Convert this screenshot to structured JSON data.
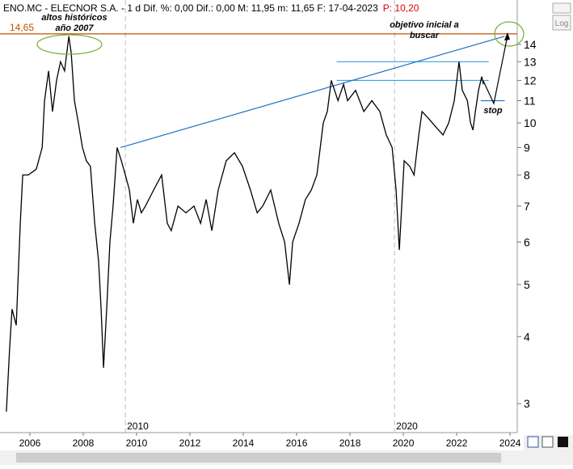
{
  "header": {
    "text": "ENO.MC - ELECNOR S.A. -  1 d  Dif. %: 0,00  Dif.: 0,00  M: 11,95  m: 11,65  F: 17-04-2023",
    "price": "P: 10,20",
    "log_button": "Log"
  },
  "chart_data": {
    "type": "line",
    "log_scale": true,
    "x": [
      2005.12,
      2005.24,
      2005.33,
      2005.49,
      2005.64,
      2005.73,
      2005.94,
      2006.24,
      2006.46,
      2006.55,
      2006.7,
      2006.85,
      2007.0,
      2007.15,
      2007.3,
      2007.46,
      2007.55,
      2007.67,
      2007.82,
      2007.97,
      2008.12,
      2008.27,
      2008.43,
      2008.58,
      2008.67,
      2008.76,
      2008.88,
      2009.0,
      2009.12,
      2009.27,
      2009.43,
      2009.58,
      2009.73,
      2009.88,
      2010.03,
      2010.18,
      2010.33,
      2010.64,
      2010.94,
      2011.15,
      2011.3,
      2011.55,
      2011.85,
      2012.15,
      2012.4,
      2012.61,
      2012.82,
      2013.06,
      2013.36,
      2013.67,
      2013.97,
      2014.27,
      2014.52,
      2014.73,
      2015.03,
      2015.33,
      2015.55,
      2015.73,
      2015.85,
      2016.09,
      2016.33,
      2016.55,
      2016.76,
      2017.0,
      2017.15,
      2017.3,
      2017.55,
      2017.76,
      2017.91,
      2018.21,
      2018.52,
      2018.82,
      2019.12,
      2019.36,
      2019.58,
      2019.73,
      2019.85,
      2020.03,
      2020.24,
      2020.4,
      2020.58,
      2020.7,
      2020.94,
      2021.24,
      2021.49,
      2021.7,
      2021.91,
      2022.09,
      2022.21,
      2022.4,
      2022.52,
      2022.61,
      2022.7,
      2022.82,
      2022.94,
      2023.0
    ],
    "series": [
      {
        "name": "ENO.MC",
        "color": "#000000",
        "values": [
          2.9,
          3.8,
          4.5,
          4.2,
          6.5,
          8,
          8,
          8.2,
          9,
          11,
          12.5,
          10.5,
          12,
          13,
          12.5,
          14.5,
          13.5,
          11,
          10,
          9,
          8.5,
          8.3,
          6.5,
          5.5,
          4.5,
          3.5,
          4.5,
          6,
          7,
          9,
          8.5,
          8,
          7.5,
          6.5,
          7.2,
          6.8,
          7,
          7.5,
          8,
          6.5,
          6.3,
          7,
          6.8,
          7,
          6.5,
          7.2,
          6.3,
          7.5,
          8.5,
          8.8,
          8.3,
          7.5,
          6.8,
          7,
          7.5,
          6.5,
          6,
          5,
          6,
          6.5,
          7.2,
          7.5,
          8,
          10,
          10.5,
          12,
          11,
          11.8,
          11,
          11.5,
          10.5,
          11,
          10.5,
          9.5,
          9,
          7.5,
          5.8,
          8.5,
          8.3,
          8,
          9.5,
          10.5,
          10.2,
          9.8,
          9.5,
          10,
          11,
          13,
          11.5,
          11,
          10,
          9.7,
          10.5,
          11.5,
          12.2,
          11.8
        ]
      }
    ],
    "xlim": [
      2004.88,
      2024.27
    ],
    "xticks": [
      2006,
      2008,
      2010,
      2012,
      2014,
      2016,
      2018,
      2020,
      2022,
      2024
    ],
    "ylim": [
      2.65,
      16.94
    ],
    "yticks": [
      3,
      4,
      5,
      6,
      7,
      8,
      9,
      10,
      11,
      12,
      13,
      14
    ],
    "period_markers": [
      {
        "value": 2009.58,
        "label": "2010"
      },
      {
        "value": 2019.67,
        "label": "2020"
      }
    ],
    "levels": [
      {
        "value": 14.65,
        "label": "14,65",
        "color": "#c05000"
      }
    ],
    "support_lines": [
      {
        "value": 13,
        "from": 2017.5,
        "to": 2023.2
      },
      {
        "value": 12,
        "from": 2017.5,
        "to": 2023.2
      },
      {
        "value": 11,
        "from": 2022.9,
        "to": 2023.8
      }
    ],
    "trend_line": {
      "x": [
        2009.4,
        2023.8
      ],
      "y": [
        9.0,
        14.5
      ]
    },
    "annotations": {
      "high": "altos históricos",
      "high_year": "año 2007",
      "target": "objetivo inicial a",
      "target2": "buscar",
      "stop": "stop"
    }
  }
}
